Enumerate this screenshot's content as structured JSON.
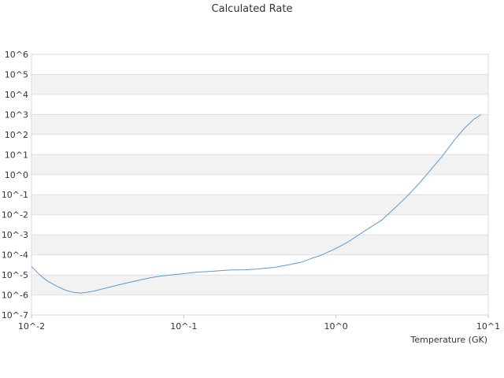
{
  "chart_data": {
    "type": "line",
    "title": "Calculated Rate",
    "xlabel": "Temperature (GK)",
    "ylabel": "",
    "x_scale": "log",
    "y_scale": "log",
    "xlim": [
      0.01,
      10
    ],
    "ylim": [
      1e-07,
      1000000.0
    ],
    "grid": "alternating horizontal bands",
    "band_color": "#f2f2f2",
    "grid_color": "#e0e0e0",
    "line_color": "#5b9bd5",
    "x_ticks": [
      {
        "value": 0.01,
        "label": "10^-2"
      },
      {
        "value": 0.1,
        "label": "10^-1"
      },
      {
        "value": 1,
        "label": "10^0"
      },
      {
        "value": 10,
        "label": "10^1"
      }
    ],
    "y_ticks": [
      {
        "value": 1000000.0,
        "label": "10^6"
      },
      {
        "value": 100000.0,
        "label": "10^5"
      },
      {
        "value": 10000.0,
        "label": "10^4"
      },
      {
        "value": 1000.0,
        "label": "10^3"
      },
      {
        "value": 100.0,
        "label": "10^2"
      },
      {
        "value": 10.0,
        "label": "10^1"
      },
      {
        "value": 1.0,
        "label": "10^0"
      },
      {
        "value": 0.1,
        "label": "10^-1"
      },
      {
        "value": 0.01,
        "label": "10^-2"
      },
      {
        "value": 0.001,
        "label": "10^-3"
      },
      {
        "value": 0.0001,
        "label": "10^-4"
      },
      {
        "value": 1e-05,
        "label": "10^-5"
      },
      {
        "value": 1e-06,
        "label": "10^-6"
      },
      {
        "value": 1e-07,
        "label": "10^-7"
      }
    ],
    "series": [
      {
        "x": [
          0.01,
          0.011,
          0.012,
          0.013,
          0.015,
          0.017,
          0.019,
          0.021,
          0.023,
          0.026,
          0.03,
          0.035,
          0.04,
          0.05,
          0.06,
          0.07,
          0.08,
          0.1,
          0.12,
          0.15,
          0.2,
          0.25,
          0.3,
          0.4,
          0.5,
          0.6,
          0.7,
          0.8,
          1.0,
          1.2,
          1.5,
          2.0,
          2.5,
          3.0,
          3.5,
          4.0,
          5.0,
          6.0,
          7.0,
          8.0,
          9.0
        ],
        "y": [
          2.6e-05,
          1.24e-05,
          6.9e-06,
          4.5e-06,
          2.5e-06,
          1.65e-06,
          1.34e-06,
          1.24e-06,
          1.34e-06,
          1.6e-06,
          2.1e-06,
          2.8e-06,
          3.6e-06,
          5.3e-06,
          7.2e-06,
          8.7e-06,
          9.7e-06,
          1.15e-05,
          1.35e-05,
          1.5e-05,
          1.75e-05,
          1.8e-05,
          1.95e-05,
          2.4e-05,
          3.3e-05,
          4.4e-05,
          6.9e-05,
          9.6e-05,
          0.00021,
          0.00044,
          0.00135,
          0.0055,
          0.026,
          0.1,
          0.35,
          1.15,
          8.5,
          54,
          210,
          560,
          1000
        ]
      }
    ]
  }
}
